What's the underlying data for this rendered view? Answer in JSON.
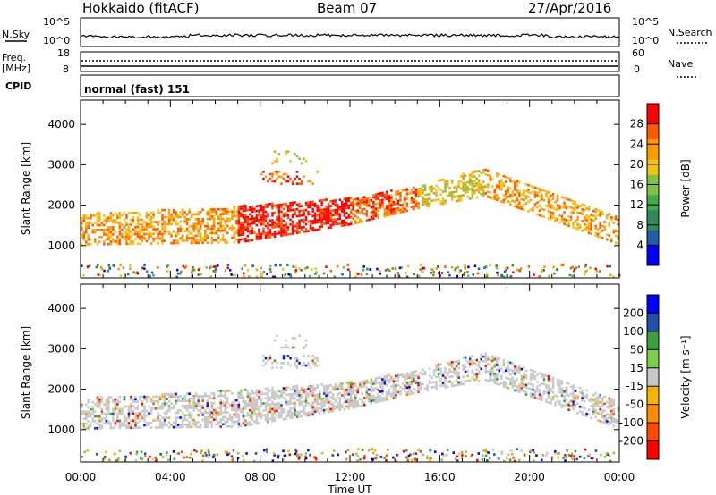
{
  "header": {
    "station": "Hokkaido (fitACF)",
    "beam": "Beam 07",
    "date": "27/Apr/2016"
  },
  "strips": {
    "nsky_label": "N.Sky",
    "nsky_ticks": [
      "10^5",
      "10^0"
    ],
    "nsearch_label": "N.Search",
    "freq_label": "Freq.",
    "freq_unit": "[MHz]",
    "freq_ticks": [
      "18",
      "8"
    ],
    "nave_label": "Nave",
    "nave_ticks": [
      "60",
      "0"
    ],
    "cpid_label": "CPID",
    "cpid_text": "normal (fast) 151"
  },
  "colors": {
    "power_scale": [
      "#0000ff",
      "#1f5fa8",
      "#2f8a57",
      "#45a84a",
      "#7ec23f",
      "#f2c316",
      "#ff9a00",
      "#ff5a00",
      "#ff0000"
    ],
    "velocity_scale": [
      "#ff0000",
      "#ff4a00",
      "#ff8a00",
      "#f5b400",
      "#c8c8c8",
      "#7ad04a",
      "#3aa040",
      "#1f4fa8",
      "#0000ff"
    ],
    "ground_scatter": "#c8c8c8"
  },
  "chart_data": [
    {
      "type": "heatmap",
      "name": "power",
      "ylabel": "Slant Range [km]",
      "y_ticks": [
        1000,
        2000,
        3000,
        4000
      ],
      "ylim": [
        200,
        4600
      ],
      "colorbar_label": "Power [dB]",
      "colorbar_ticks": [
        4,
        8,
        12,
        16,
        20,
        24,
        28
      ],
      "colorbar_range": [
        0,
        32
      ]
    },
    {
      "type": "heatmap",
      "name": "velocity",
      "ylabel": "Slant Range [km]",
      "y_ticks": [
        1000,
        2000,
        3000,
        4000
      ],
      "ylim": [
        200,
        4600
      ],
      "colorbar_label": "Velocity [m s⁻¹]",
      "colorbar_ticks": [
        200,
        100,
        50,
        15,
        -15,
        -50,
        -100,
        -200
      ],
      "xlabel": "Time UT",
      "x_ticks": [
        "00:00",
        "04:00",
        "08:00",
        "12:00",
        "16:00",
        "20:00",
        "00:00"
      ],
      "xlim_hours": [
        0,
        24
      ]
    }
  ]
}
